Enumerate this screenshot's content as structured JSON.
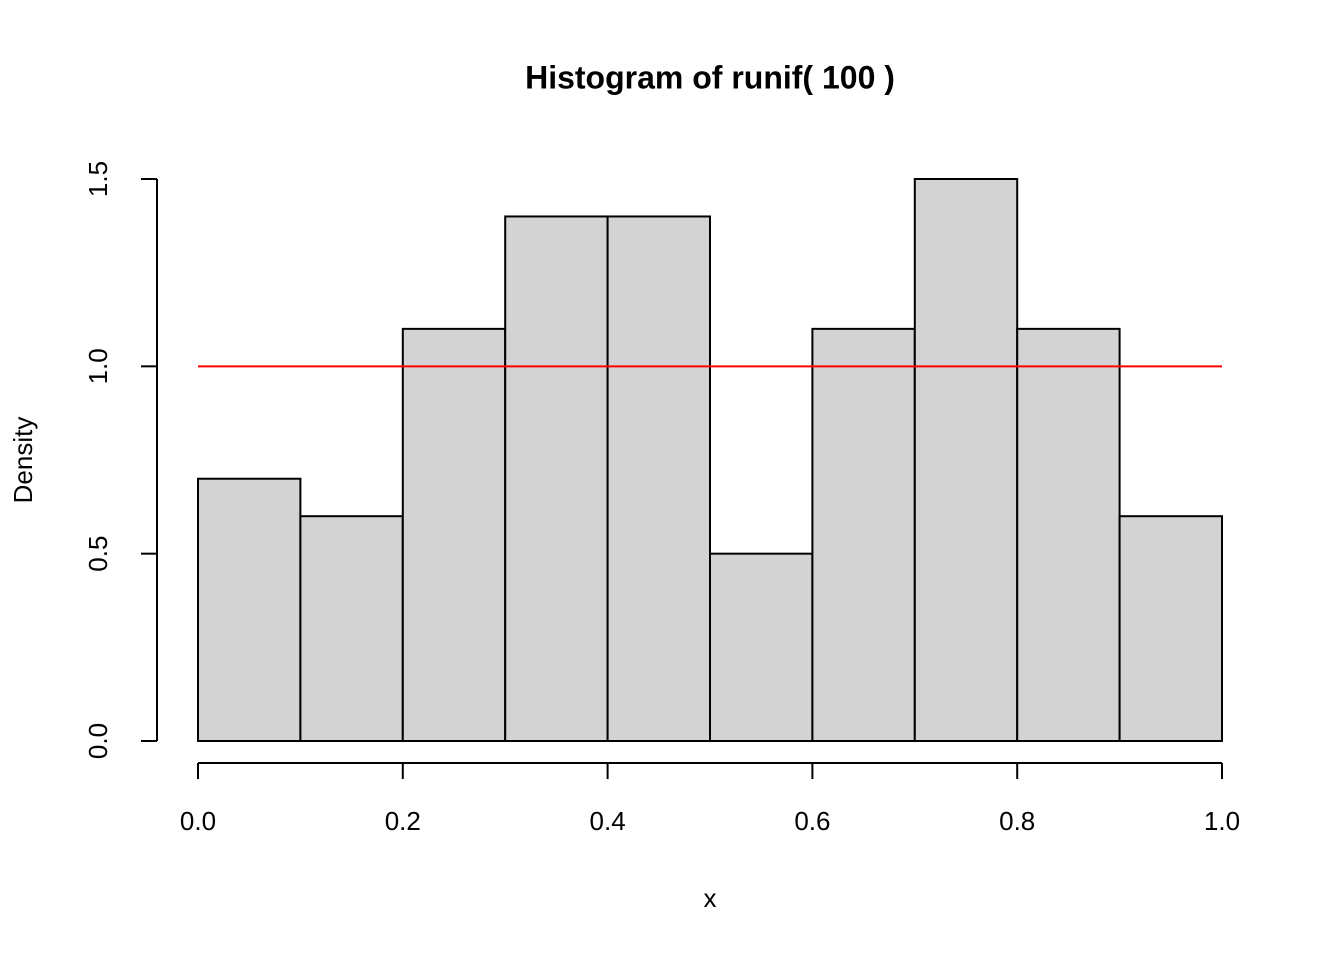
{
  "chart_data": {
    "type": "histogram",
    "title": "Histogram of runif( 100 )",
    "x_label": "x",
    "y_label": "Density",
    "bins": [
      0,
      0.1,
      0.2,
      0.3,
      0.4,
      0.5,
      0.6,
      0.7,
      0.8,
      0.9,
      1
    ],
    "values": [
      0.7,
      0.6,
      1.1,
      1.4,
      1.4,
      0.5,
      1.1,
      1.5,
      1.1,
      0.6
    ],
    "color": "#d3d3d3",
    "reference_line": {
      "value": 1,
      "color": "#ff0000"
    },
    "xlim": [
      0,
      1
    ],
    "ylim": [
      0,
      1.5
    ],
    "xticks": [
      {
        "value": 0,
        "label": "0.0"
      },
      0.2,
      0.4,
      0.6,
      0.8,
      {
        "value": 1,
        "label": "1.0"
      }
    ],
    "yticks": [
      {
        "value": 0,
        "label": "0.0"
      },
      0.5,
      {
        "value": 1,
        "label": "1.0"
      },
      1.5
    ]
  }
}
